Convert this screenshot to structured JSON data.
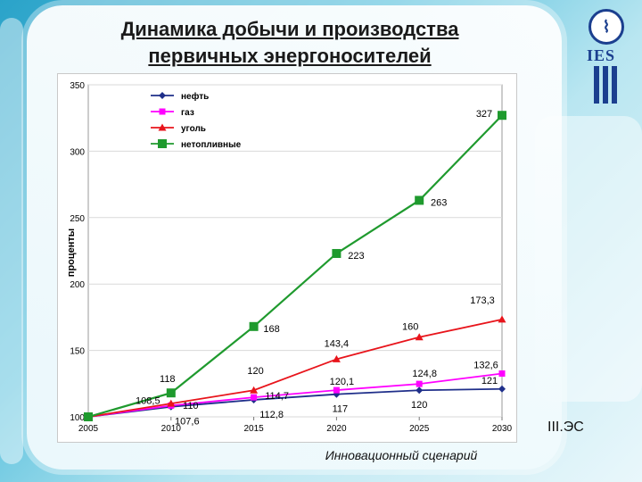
{
  "slide": {
    "title_line1": "Динамика добычи и производства",
    "title_line2": "первичных энергоносителей",
    "scenario_label": "III.ЭС",
    "caption": "Инновационный сценарий",
    "logo_text": "IES"
  },
  "chart_data": {
    "type": "line",
    "x": [
      2005,
      2010,
      2015,
      2020,
      2025,
      2030
    ],
    "ylabel": "проценты",
    "xlabel": "",
    "ylim": [
      100,
      350
    ],
    "yticks": [
      100,
      150,
      200,
      250,
      300,
      350
    ],
    "legend_position": "top-left",
    "series": [
      {
        "name": "нефть",
        "color": "#1f2f8a",
        "marker": "diamond",
        "values": [
          100,
          107.6,
          112.8,
          117,
          120,
          121
        ],
        "labels": [
          "",
          "107,6",
          "112,8",
          "117",
          "120",
          "121"
        ]
      },
      {
        "name": "газ",
        "color": "#ff00ff",
        "marker": "square",
        "values": [
          100,
          108.5,
          114.7,
          120.1,
          124.8,
          132.6
        ],
        "labels": [
          "",
          "108,5",
          "114,7",
          "120,1",
          "124,8",
          "132,6"
        ]
      },
      {
        "name": "уголь",
        "color": "#e8141b",
        "marker": "triangle",
        "values": [
          100,
          110,
          120,
          143.4,
          160,
          173.3
        ],
        "labels": [
          "",
          "110",
          "120",
          "143,4",
          "160",
          "173,3"
        ]
      },
      {
        "name": "нетопливные",
        "color": "#1f9a2e",
        "marker": "square",
        "values": [
          100,
          118,
          168,
          223,
          263,
          327
        ],
        "labels": [
          "",
          "118",
          "168",
          "223",
          "263",
          "327"
        ]
      }
    ]
  }
}
